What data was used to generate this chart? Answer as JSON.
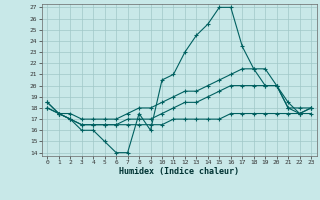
{
  "xlabel": "Humidex (Indice chaleur)",
  "bg_color": "#c8e8e8",
  "grid_color": "#a0c8c8",
  "line_color": "#006060",
  "xlim": [
    0,
    23
  ],
  "ylim": [
    14,
    27
  ],
  "yticks": [
    14,
    15,
    16,
    17,
    18,
    19,
    20,
    21,
    22,
    23,
    24,
    25,
    26,
    27
  ],
  "xticks": [
    0,
    1,
    2,
    3,
    4,
    5,
    6,
    7,
    8,
    9,
    10,
    11,
    12,
    13,
    14,
    15,
    16,
    17,
    18,
    19,
    20,
    21,
    22,
    23
  ],
  "line1_x": [
    0,
    1,
    2,
    3,
    4,
    5,
    6,
    7,
    8,
    9,
    10,
    11,
    12,
    13,
    14,
    15,
    16,
    17,
    18,
    19,
    20,
    21,
    22,
    23
  ],
  "line1_y": [
    18.5,
    17.5,
    17.0,
    16.0,
    16.0,
    15.0,
    14.0,
    14.0,
    17.5,
    16.0,
    20.5,
    21.0,
    23.0,
    24.5,
    25.5,
    27.0,
    27.0,
    23.5,
    21.5,
    20.0,
    20.0,
    18.5,
    17.5,
    18.0
  ],
  "line2_x": [
    0,
    1,
    2,
    3,
    4,
    5,
    6,
    7,
    8,
    9,
    10,
    11,
    12,
    13,
    14,
    15,
    16,
    17,
    18,
    19,
    20,
    21,
    22,
    23
  ],
  "line2_y": [
    18.5,
    17.5,
    17.5,
    17.0,
    17.0,
    17.0,
    17.0,
    17.5,
    18.0,
    18.0,
    18.5,
    19.0,
    19.5,
    19.5,
    20.0,
    20.5,
    21.0,
    21.5,
    21.5,
    21.5,
    20.0,
    18.0,
    18.0,
    18.0
  ],
  "line3_x": [
    0,
    1,
    2,
    3,
    4,
    5,
    6,
    7,
    8,
    9,
    10,
    11,
    12,
    13,
    14,
    15,
    16,
    17,
    18,
    19,
    20,
    21,
    22,
    23
  ],
  "line3_y": [
    18.0,
    17.5,
    17.0,
    16.5,
    16.5,
    16.5,
    16.5,
    17.0,
    17.0,
    17.0,
    17.5,
    18.0,
    18.5,
    18.5,
    19.0,
    19.5,
    20.0,
    20.0,
    20.0,
    20.0,
    20.0,
    18.0,
    17.5,
    17.5
  ],
  "line4_x": [
    0,
    1,
    2,
    3,
    4,
    5,
    6,
    7,
    8,
    9,
    10,
    11,
    12,
    13,
    14,
    15,
    16,
    17,
    18,
    19,
    20,
    21,
    22,
    23
  ],
  "line4_y": [
    18.0,
    17.5,
    17.0,
    16.5,
    16.5,
    16.5,
    16.5,
    16.5,
    16.5,
    16.5,
    16.5,
    17.0,
    17.0,
    17.0,
    17.0,
    17.0,
    17.5,
    17.5,
    17.5,
    17.5,
    17.5,
    17.5,
    17.5,
    18.0
  ]
}
